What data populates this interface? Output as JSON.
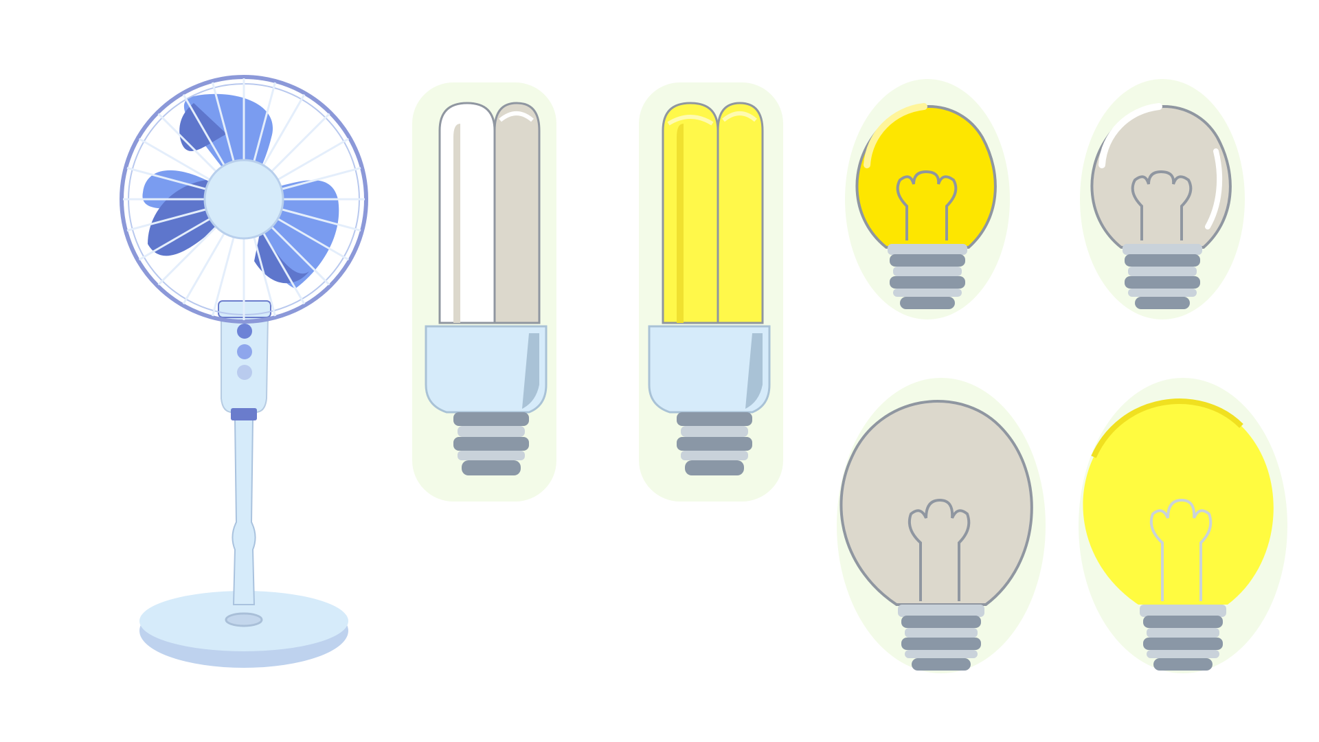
{
  "illustration": {
    "items": [
      {
        "kind": "stand-fan",
        "blade_color": "#7a9cf0",
        "body_color": "#d6ebfa"
      },
      {
        "kind": "cfl-bulb",
        "state": "off",
        "tube_color": "#dcd8cc"
      },
      {
        "kind": "cfl-bulb",
        "state": "on",
        "tube_color": "#fff84a"
      },
      {
        "kind": "incandescent-bulb",
        "size": "small",
        "state": "on",
        "glass_color": "#fde600"
      },
      {
        "kind": "incandescent-bulb",
        "size": "small",
        "state": "off",
        "glass_color": "#dcd8cc"
      },
      {
        "kind": "incandescent-bulb",
        "size": "large",
        "state": "off",
        "glass_color": "#dcd8cc"
      },
      {
        "kind": "incandescent-bulb",
        "size": "large",
        "state": "on",
        "glass_color": "#fffb40"
      }
    ],
    "colors": {
      "background": "#ffffff",
      "halo": "#f3fbe8",
      "outline": "#8f96a0",
      "socket": "#8a97a6",
      "socket_light": "#c9d2da",
      "base_light": "#d6ebfa",
      "base_shade": "#a9c2d6"
    }
  }
}
